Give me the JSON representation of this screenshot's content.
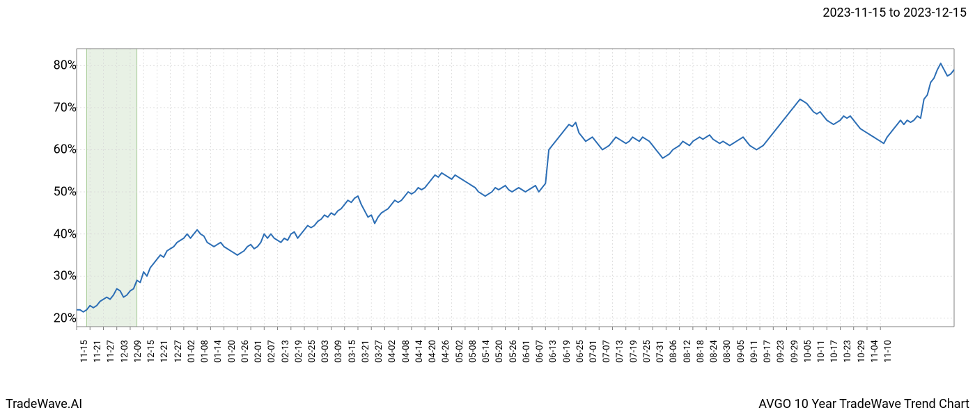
{
  "header": {
    "date_range": "2023-11-15 to 2023-12-15"
  },
  "footer": {
    "left": "TradeWave.AI",
    "right": "AVGO 10 Year TradeWave Trend Chart"
  },
  "chart": {
    "type": "line",
    "background_color": "#ffffff",
    "grid_color": "#d8d8d8",
    "grid_dash": "2,3",
    "border_color": "#808080",
    "line_color": "#2c6eb5",
    "line_width": 2,
    "highlight": {
      "fill": "#d9e8d4",
      "stroke": "#6aa84f",
      "opacity": 0.6,
      "x_start_index": 3,
      "x_end_index": 18
    },
    "y_axis": {
      "min": 18,
      "max": 84,
      "ticks": [
        20,
        30,
        40,
        50,
        60,
        70,
        80
      ],
      "tick_labels": [
        "20%",
        "30%",
        "40%",
        "50%",
        "60%",
        "70%",
        "80%"
      ],
      "label_fontsize": 18,
      "label_color": "#000000"
    },
    "x_axis": {
      "tick_labels": [
        "11-15",
        "11-21",
        "11-27",
        "12-03",
        "12-09",
        "12-15",
        "12-21",
        "12-27",
        "01-02",
        "01-08",
        "01-14",
        "01-20",
        "01-26",
        "02-01",
        "02-07",
        "02-13",
        "02-19",
        "02-25",
        "03-03",
        "03-09",
        "03-15",
        "03-21",
        "03-27",
        "04-02",
        "04-08",
        "04-14",
        "04-20",
        "04-26",
        "05-02",
        "05-08",
        "05-14",
        "05-20",
        "05-26",
        "06-01",
        "06-07",
        "06-13",
        "06-19",
        "06-25",
        "07-01",
        "07-07",
        "07-13",
        "07-19",
        "07-25",
        "07-31",
        "08-06",
        "08-12",
        "08-18",
        "08-24",
        "08-30",
        "09-05",
        "09-11",
        "09-17",
        "09-23",
        "09-29",
        "10-05",
        "10-11",
        "10-17",
        "10-23",
        "10-29",
        "11-04",
        "11-10"
      ],
      "tick_every": 4,
      "label_fontsize": 13,
      "label_color": "#000000",
      "rotation": -90
    },
    "series": {
      "values": [
        22,
        22,
        21.5,
        22,
        23,
        22.5,
        23,
        24,
        24.5,
        25,
        24.5,
        25.5,
        27,
        26.5,
        25,
        25.5,
        26.5,
        27,
        29,
        28.5,
        31,
        30,
        32,
        33,
        34,
        35,
        34.5,
        36,
        36.5,
        37,
        38,
        38.5,
        39,
        40,
        39,
        40,
        41,
        40,
        39.5,
        38,
        37.5,
        37,
        37.5,
        38,
        37,
        36.5,
        36,
        35.5,
        35,
        35.5,
        36,
        37,
        37.5,
        36.5,
        37,
        38,
        40,
        39,
        40,
        39,
        38.5,
        38,
        39,
        38.5,
        40,
        40.5,
        39,
        40,
        41,
        42,
        41.5,
        42,
        43,
        43.5,
        44.5,
        44,
        45,
        44.5,
        45.5,
        46,
        47,
        48,
        47.5,
        48.5,
        49,
        47,
        45.5,
        44,
        44.5,
        42.5,
        44,
        45,
        45.5,
        46,
        47,
        48,
        47.5,
        48,
        49,
        50,
        49.5,
        50,
        51,
        50.5,
        51,
        52,
        53,
        54,
        53.5,
        54.5,
        54,
        53.5,
        53,
        54,
        53.5,
        53,
        52.5,
        52,
        51.5,
        51,
        50,
        49.5,
        49,
        49.5,
        50,
        51,
        50.5,
        51,
        51.5,
        50.5,
        50,
        50.5,
        51,
        50.5,
        50,
        50.5,
        51,
        51.5,
        50,
        51,
        52,
        60,
        61,
        62,
        63,
        64,
        65,
        66,
        65.5,
        66.5,
        64,
        63,
        62,
        62.5,
        63,
        62,
        61,
        60,
        60.5,
        61,
        62,
        63,
        62.5,
        62,
        61.5,
        62,
        63,
        62.5,
        62,
        63,
        62.5,
        62,
        61,
        60,
        59,
        58,
        58.5,
        59,
        60,
        60.5,
        61,
        62,
        61.5,
        61,
        62,
        62.5,
        63,
        62.5,
        63,
        63.5,
        62.5,
        62,
        61.5,
        62,
        61.5,
        61,
        61.5,
        62,
        62.5,
        63,
        62,
        61,
        60.5,
        60,
        60.5,
        61,
        62,
        63,
        64,
        65,
        66,
        67,
        68,
        69,
        70,
        71,
        72,
        71.5,
        71,
        70,
        69,
        68.5,
        69,
        68,
        67,
        66.5,
        66,
        66.5,
        67,
        68,
        67.5,
        68,
        67,
        66,
        65,
        64.5,
        64,
        63.5,
        63,
        62.5,
        62,
        61.5,
        63,
        64,
        65,
        66,
        67,
        66,
        67,
        66.5,
        67,
        68,
        67.5,
        72,
        73,
        76,
        77,
        79,
        80.5,
        79,
        77.5,
        78,
        79
      ]
    }
  }
}
